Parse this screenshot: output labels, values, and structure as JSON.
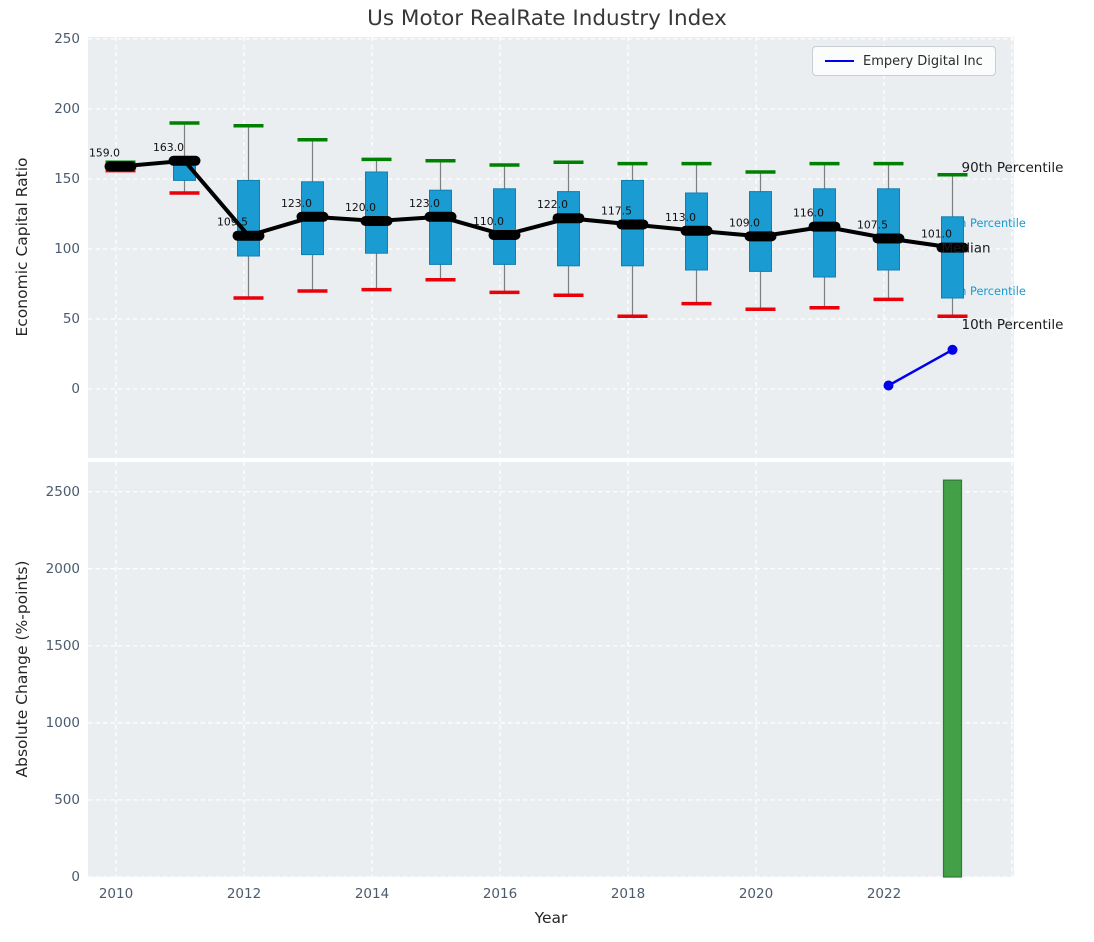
{
  "title": "Us Motor RealRate Industry Index",
  "xlabel": "Year",
  "legend": {
    "label": "Empery Digital Inc"
  },
  "colors": {
    "axes_background": "#eaeef0",
    "grid": "#ffffff",
    "box_fill": "#1a9cd3",
    "box_edge": "#0e7fb3",
    "whisker": "#7f7f7f",
    "p90_dash": "#008000",
    "p10_dash": "#e8000b",
    "median": "#000000",
    "company_line": "#0000ee",
    "bar_fill": "#43a047",
    "bar_edge": "#2e7d32",
    "cyan_label": "#189ad1",
    "tick_label": "#4a5b6e"
  },
  "top_chart": {
    "ylabel": "Economic Capital Ratio",
    "yticks": [
      0,
      50,
      100,
      150,
      200,
      250
    ],
    "grid_years": [
      2010,
      2012,
      2014,
      2016,
      2018,
      2020,
      2022,
      2024
    ],
    "right_labels": {
      "p90": "90th Percentile",
      "p75": "75th Percentile",
      "median": "Median",
      "p25": "25th Percentile",
      "p10": "10th Percentile"
    }
  },
  "bottom_chart": {
    "ylabel": "Absolute Change (%-points)",
    "yticks": [
      0,
      500,
      1000,
      1500,
      2000,
      2500
    ],
    "xticks": [
      2010,
      2012,
      2014,
      2016,
      2018,
      2020,
      2022
    ]
  },
  "chart_data": [
    {
      "type": "box",
      "ylabel": "Economic Capital Ratio",
      "xlim": [
        2009.56,
        2024.03
      ],
      "ylim": [
        -50,
        251
      ],
      "years": [
        2010,
        2011,
        2012,
        2013,
        2014,
        2015,
        2016,
        2017,
        2018,
        2019,
        2020,
        2021,
        2022,
        2023
      ],
      "p90": [
        162,
        190,
        188,
        178,
        164,
        163,
        160,
        162,
        161,
        161,
        155,
        161,
        161,
        153
      ],
      "p75": [
        160,
        164,
        149,
        148,
        155,
        142,
        143,
        141,
        149,
        140,
        141,
        143,
        143,
        123
      ],
      "median": [
        159.0,
        163.0,
        109.5,
        123.0,
        120.0,
        123.0,
        110.0,
        122.0,
        117.5,
        113.0,
        109.0,
        116.0,
        107.5,
        101.0
      ],
      "p25": [
        157,
        149,
        95,
        96,
        97,
        89,
        89,
        88,
        88,
        85,
        84,
        80,
        85,
        65
      ],
      "p10": [
        156,
        140,
        65,
        70,
        71,
        78,
        69,
        67,
        52,
        61,
        57,
        58,
        64,
        52
      ],
      "median_labels": [
        "159.0",
        "163.0",
        "109.5",
        "123.0",
        "120.0",
        "123.0",
        "110.0",
        "122.0",
        "117.5",
        "113.0",
        "109.0",
        "116.0",
        "107.5",
        "101.0"
      ],
      "company_line": {
        "name": "Empery Digital Inc",
        "x": [
          2022,
          2023
        ],
        "y": [
          2.5,
          28
        ]
      },
      "legend_position": "upper right",
      "grid": true
    },
    {
      "type": "bar",
      "ylabel": "Absolute Change (%-points)",
      "xlabel": "Year",
      "xlim": [
        2009.56,
        2024.03
      ],
      "ylim": [
        0,
        2695
      ],
      "categories": [
        2023
      ],
      "values": [
        2575
      ],
      "grid": true
    }
  ]
}
